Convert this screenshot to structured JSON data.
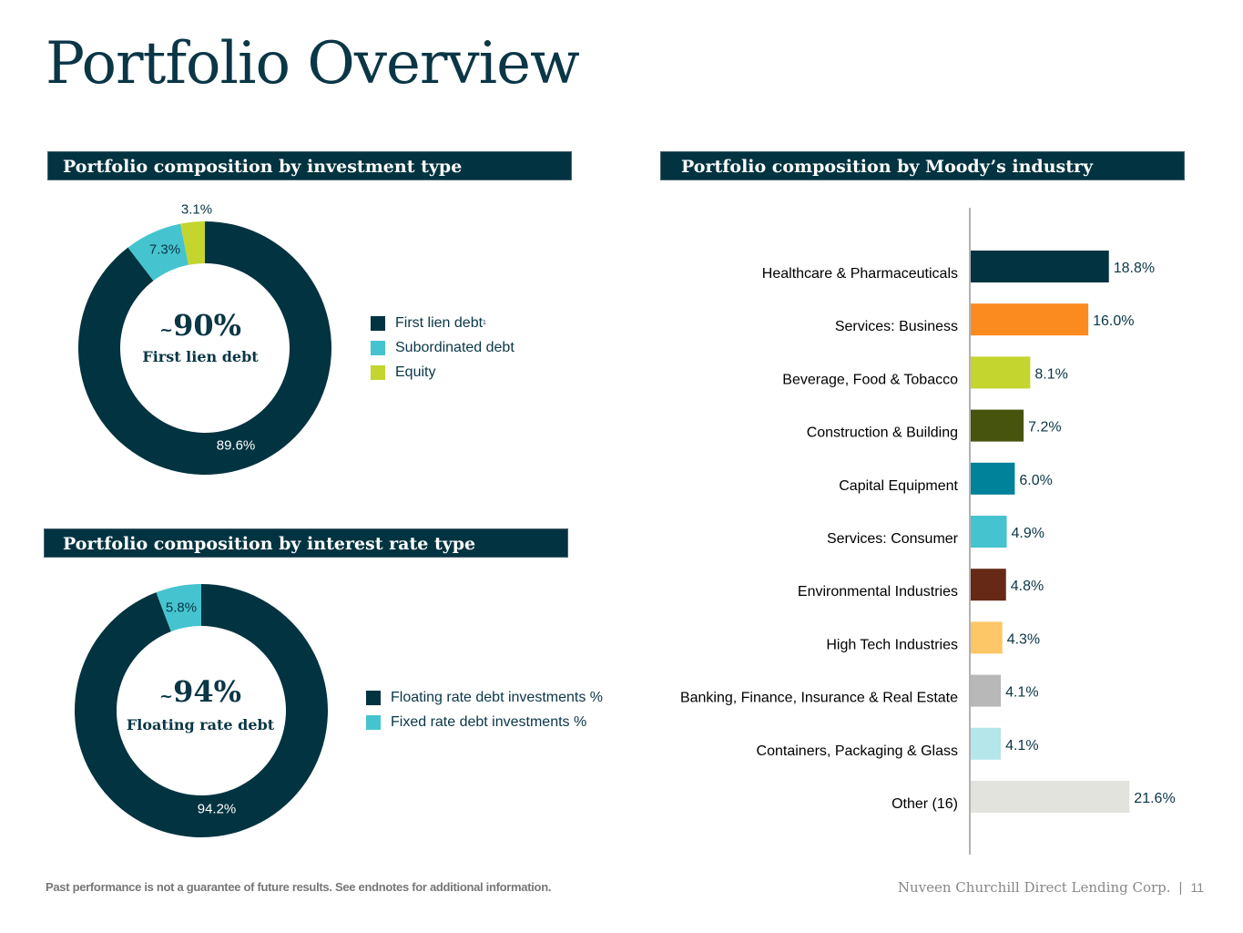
{
  "page": {
    "title": "Portfolio Overview"
  },
  "investment_type": {
    "heading": "Portfolio composition by investment type",
    "center_value": "90%",
    "center_prefix": "~",
    "center_label": "First lien debt",
    "legend": [
      {
        "label": "First lien debt",
        "sup": "1"
      },
      {
        "label": "Subordinated debt"
      },
      {
        "label": "Equity"
      }
    ]
  },
  "interest_rate": {
    "heading": "Portfolio composition by interest rate type",
    "center_value": "94%",
    "center_prefix": "~",
    "center_label": "Floating rate debt",
    "legend": [
      {
        "label": "Floating rate debt investments %"
      },
      {
        "label": "Fixed rate debt investments %"
      }
    ]
  },
  "industry": {
    "heading": "Portfolio composition by Moody’s industry"
  },
  "colors": {
    "navy": "#023340",
    "teal": "#45c4cf",
    "lime": "#c3d52e",
    "orange": "#fb8b1f",
    "olive": "#46540d",
    "petrol": "#00829a",
    "brown": "#652916",
    "sand": "#fdc666",
    "grey": "#b8b8b8",
    "paleteal": "#b4e6ea",
    "stone": "#e3e3dd"
  },
  "chart_data": [
    {
      "type": "pie",
      "categories": [
        "First lien debt",
        "Subordinated debt",
        "Equity"
      ],
      "values": [
        89.6,
        7.3,
        3.1
      ],
      "labels": [
        "89.6%",
        "7.3%",
        "3.1%"
      ],
      "colors": [
        "#023340",
        "#45c4cf",
        "#c3d52e"
      ]
    },
    {
      "type": "pie",
      "categories": [
        "Floating rate debt investments %",
        "Fixed rate debt investments %"
      ],
      "values": [
        94.2,
        5.8
      ],
      "labels": [
        "94.2%",
        "5.8%"
      ],
      "colors": [
        "#023340",
        "#45c4cf"
      ]
    },
    {
      "type": "bar",
      "orientation": "horizontal",
      "categories": [
        "Healthcare & Pharmaceuticals",
        "Services: Business",
        "Beverage, Food & Tobacco",
        "Construction & Building",
        "Capital Equipment",
        "Services: Consumer",
        "Environmental Industries",
        "High Tech Industries",
        "Banking, Finance, Insurance & Real Estate",
        "Containers, Packaging & Glass",
        "Other (16)"
      ],
      "values": [
        18.8,
        16.0,
        8.1,
        7.2,
        6.0,
        4.9,
        4.8,
        4.3,
        4.1,
        4.1,
        21.6
      ],
      "labels": [
        "18.8%",
        "16.0%",
        "8.1%",
        "7.2%",
        "6.0%",
        "4.9%",
        "4.8%",
        "4.3%",
        "4.1%",
        "4.1%",
        "21.6%"
      ],
      "colors": [
        "#023340",
        "#fb8b1f",
        "#c3d52e",
        "#46540d",
        "#00829a",
        "#45c4cf",
        "#652916",
        "#fdc666",
        "#b8b8b8",
        "#b4e6ea",
        "#e3e3dd"
      ]
    }
  ],
  "footer": {
    "note": "Past performance is not a guarantee of future results. See endnotes for additional information.",
    "company": "Nuveen Churchill Direct Lending Corp.",
    "separator": "|",
    "page_number": "11"
  }
}
